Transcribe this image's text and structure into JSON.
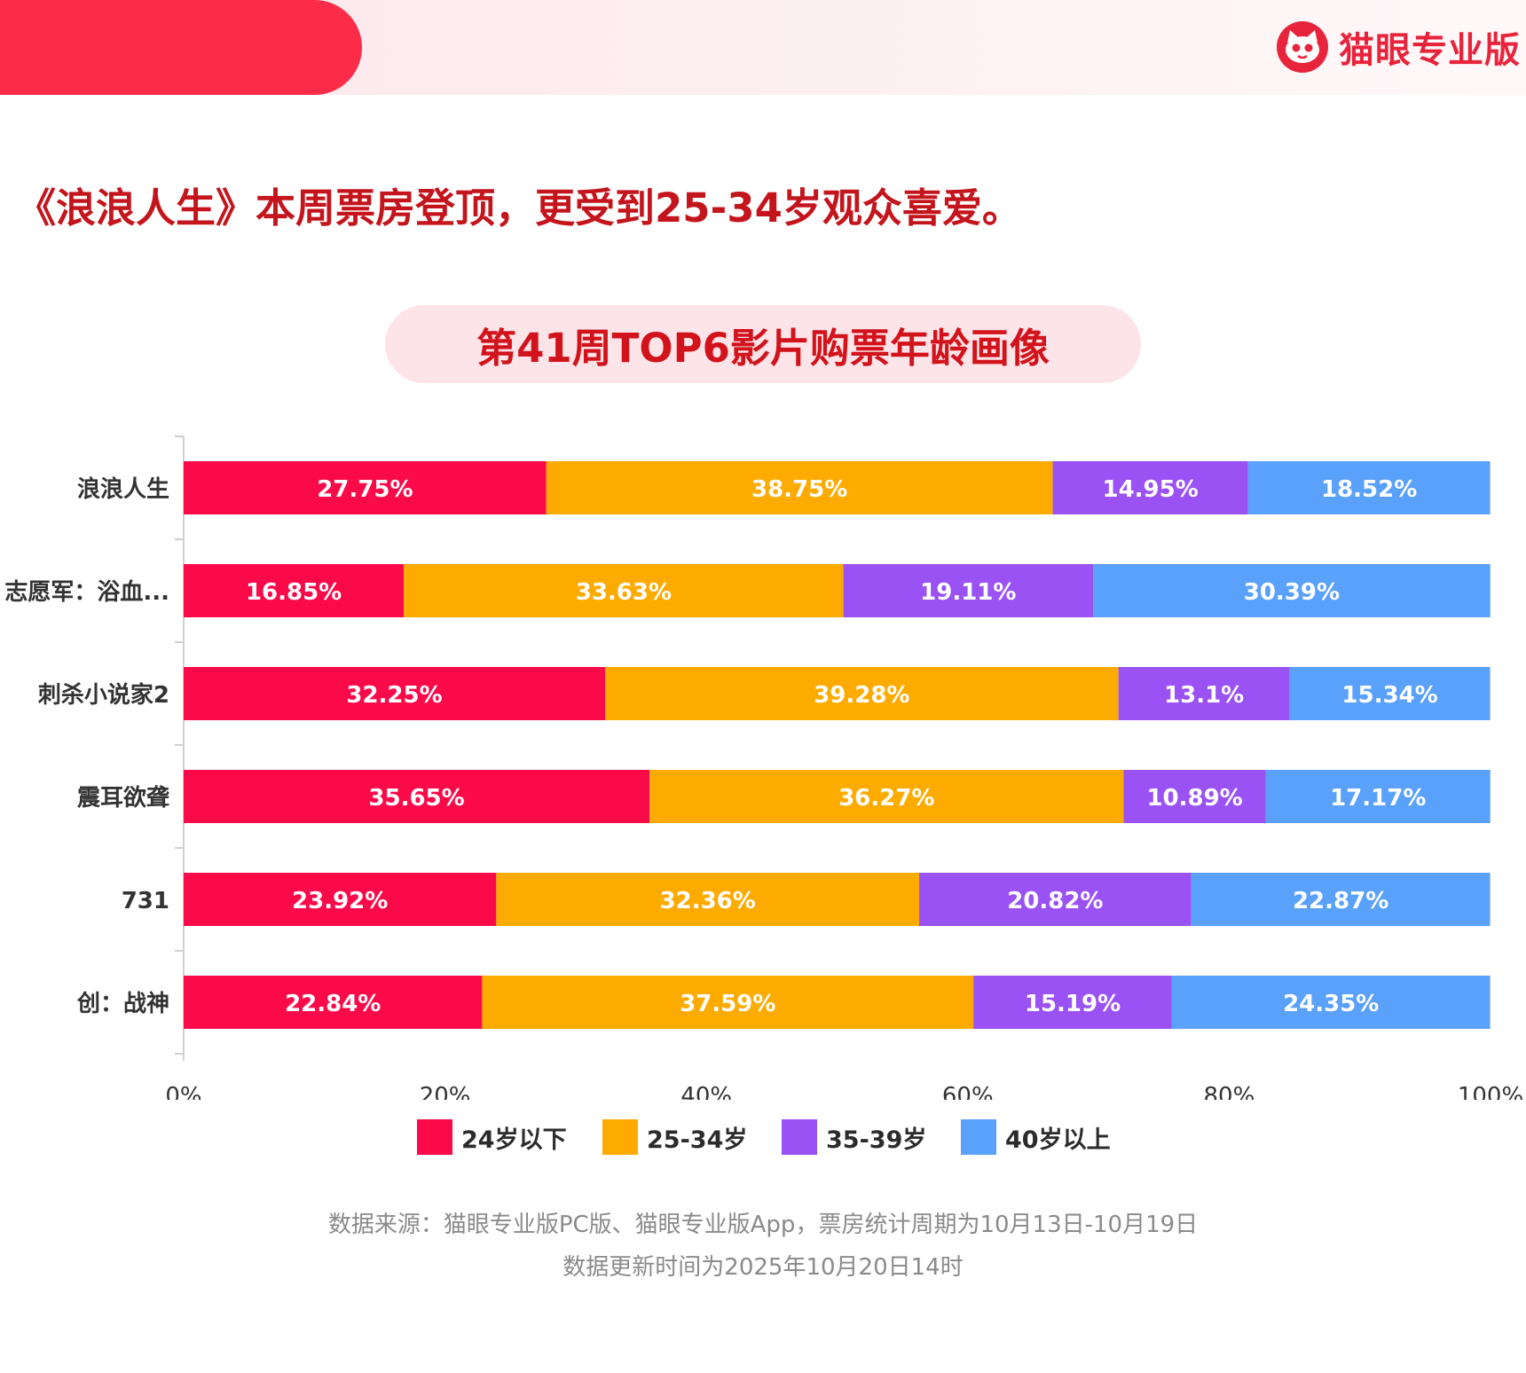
{
  "header": {
    "brand_name": "猫眼专业版",
    "brand_logo_icon": "cat-face-icon",
    "accent_color": "#fc2b47"
  },
  "headline": "《浪浪人生》本周票房登顶，更受到25-34岁观众喜爱。",
  "chart_title": "第41周TOP6影片购票年龄画像",
  "chart_data": {
    "type": "bar",
    "orientation": "horizontal",
    "stacked": true,
    "title": "第41周TOP6影片购票年龄画像",
    "categories": [
      "浪浪人生",
      "志愿军：浴血...",
      "刺杀小说家2",
      "震耳欲聋",
      "731",
      "创：战神"
    ],
    "series": [
      {
        "name": "24岁以下",
        "color": "#fb0a4a",
        "values": [
          27.75,
          16.85,
          32.25,
          35.65,
          23.92,
          22.84
        ],
        "labels": [
          "27.75%",
          "16.85%",
          "32.25%",
          "35.65%",
          "23.92%",
          "22.84%"
        ]
      },
      {
        "name": "25-34岁",
        "color": "#fdab00",
        "values": [
          38.75,
          33.63,
          39.28,
          36.27,
          32.36,
          37.59
        ],
        "labels": [
          "38.75%",
          "33.63%",
          "39.28%",
          "36.27%",
          "32.36%",
          "37.59%"
        ]
      },
      {
        "name": "35-39岁",
        "color": "#9a52f4",
        "values": [
          14.95,
          19.11,
          13.1,
          10.89,
          20.82,
          15.19
        ],
        "labels": [
          "14.95%",
          "19.11%",
          "13.1%",
          "10.89%",
          "20.82%",
          "15.19%"
        ]
      },
      {
        "name": "40岁以上",
        "color": "#5aa1fc",
        "values": [
          18.52,
          30.39,
          15.34,
          17.17,
          22.87,
          24.35
        ],
        "labels": [
          "18.52%",
          "30.39%",
          "15.34%",
          "17.17%",
          "22.87%",
          "24.35%"
        ]
      }
    ],
    "xlim": [
      0,
      100
    ],
    "xticks": [
      "0%",
      "20%",
      "40%",
      "60%",
      "80%",
      "100%"
    ],
    "legend_position": "bottom",
    "grid": false
  },
  "legend": [
    {
      "label": "24岁以下",
      "color": "#fb0a4a"
    },
    {
      "label": "25-34岁",
      "color": "#fdab00"
    },
    {
      "label": "35-39岁",
      "color": "#9a52f4"
    },
    {
      "label": "40岁以上",
      "color": "#5aa1fc"
    }
  ],
  "footnote": {
    "line1": "数据来源：猫眼专业版PC版、猫眼专业版App，票房统计周期为10月13日-10月19日",
    "line2": "数据更新时间为2025年10月20日14时"
  }
}
